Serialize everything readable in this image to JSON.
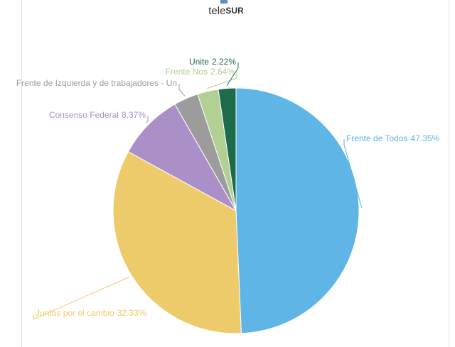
{
  "header": {
    "logo_light": "tele",
    "logo_bold": "SUR"
  },
  "chart_data": {
    "type": "pie",
    "categories": [
      "Frente de Todos",
      "Juntos por el cambio",
      "Consenso Federal",
      "Frente de Izquierda y de trabajadores - Un",
      "Frente Nos",
      "Unite"
    ],
    "values": [
      47.35,
      32.33,
      8.37,
      3.1,
      2.64,
      2.22
    ],
    "value_labels": [
      "47.35%",
      "32.33%",
      "8.37%",
      null,
      "2.64%",
      "2.22%"
    ],
    "colors": [
      "#5fb5e5",
      "#eecb6a",
      "#ab8fc8",
      "#9c9c9c",
      "#b2cf94",
      "#1e6b4b"
    ]
  }
}
